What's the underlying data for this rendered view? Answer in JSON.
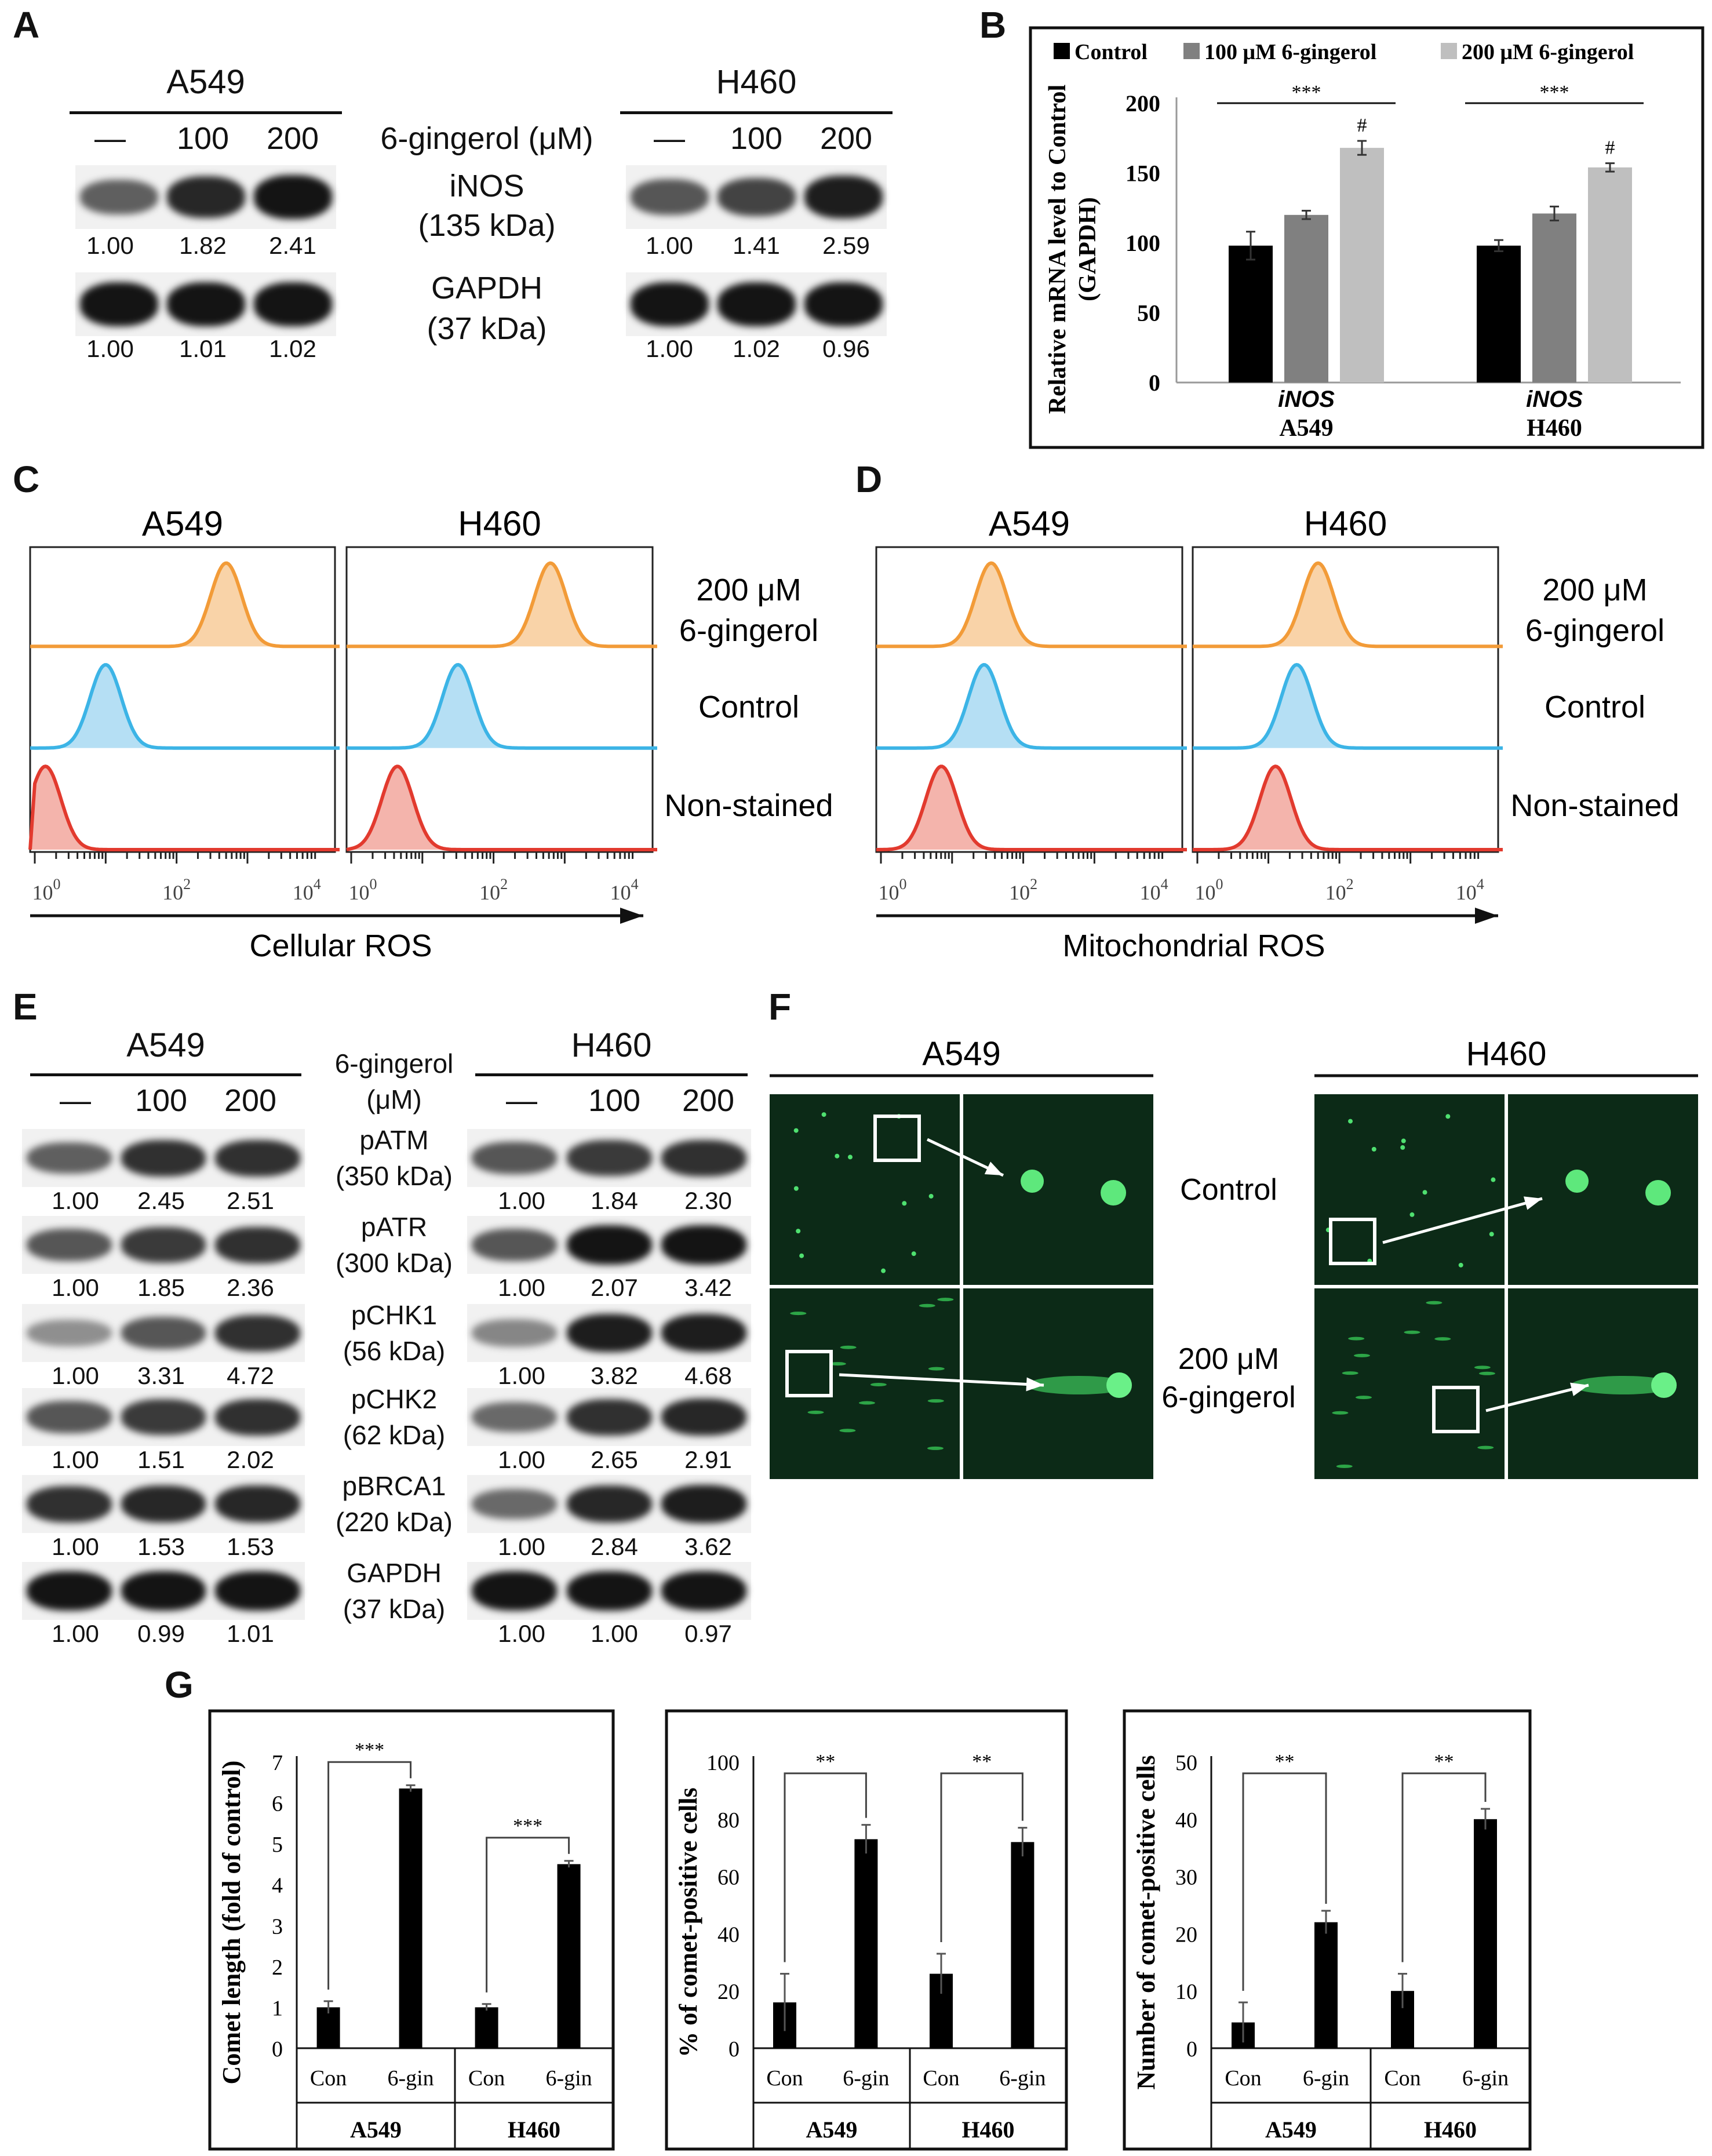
{
  "panels": {
    "A": {
      "letter": "A",
      "groups": [
        {
          "cell": "A549",
          "doses": [
            "—",
            "100",
            "200"
          ],
          "iNOS": [
            "1.00",
            "1.82",
            "2.41"
          ],
          "GAPDH": [
            "1.00",
            "1.01",
            "1.02"
          ]
        },
        {
          "cell": "H460",
          "doses": [
            "—",
            "100",
            "200"
          ],
          "iNOS": [
            "1.00",
            "1.41",
            "2.59"
          ],
          "GAPDH": [
            "1.00",
            "1.02",
            "0.96"
          ]
        }
      ],
      "treatment_label": "6-gingerol (μM)",
      "protein1": [
        "iNOS",
        "(135 kDa)"
      ],
      "protein2": [
        "GAPDH",
        "(37 kDa)"
      ]
    },
    "B": {
      "letter": "B",
      "chart_data": {
        "type": "bar",
        "legend": [
          "Control",
          "100 μM 6-gingerol",
          "200 μM 6-gingerol"
        ],
        "legend_placement": "top",
        "categories": [
          [
            "iNOS",
            "A549"
          ],
          [
            "iNOS",
            "H460"
          ]
        ],
        "series": [
          {
            "name": "Control",
            "color": "#000000",
            "values": [
              98,
              98
            ],
            "errors": [
              10,
              4
            ]
          },
          {
            "name": "100 μM 6-gingerol",
            "color": "#808080",
            "values": [
              120,
              121
            ],
            "errors": [
              3,
              5
            ]
          },
          {
            "name": "200 μM 6-gingerol",
            "color": "#bfbfbf",
            "values": [
              168,
              154
            ],
            "errors": [
              5,
              3
            ]
          }
        ],
        "ylabel": [
          "Relative mRNA level to Control",
          "(GAPDH)"
        ],
        "yticks": [
          0,
          50,
          100,
          150,
          200
        ],
        "ylim": [
          0,
          200
        ],
        "annotations": {
          "bracket": "***",
          "hash": "#"
        }
      }
    },
    "C": {
      "letter": "C",
      "chart_data": {
        "type": "area",
        "titles": [
          "A549",
          "H460"
        ],
        "xlabel": "Cellular ROS",
        "xscale": "log",
        "xticks": [
          "10",
          "10",
          "10"
        ],
        "xtick_exp": [
          "0",
          "2",
          "4"
        ],
        "series_labels": [
          [
            "200 μM",
            "6-gingerol"
          ],
          [
            "Control"
          ],
          [
            "Non-stained"
          ]
        ],
        "peaks_log10": [
          [
            2.7,
            1.0,
            0.15
          ],
          [
            2.8,
            1.5,
            0.65
          ]
        ],
        "colors": [
          "#f29b38",
          "#3cb4e6",
          "#e23a2e"
        ],
        "fills": [
          "#f9d3a8",
          "#b5dff4",
          "#f4b4ac"
        ]
      }
    },
    "D": {
      "letter": "D",
      "chart_data": {
        "type": "area",
        "titles": [
          "A549",
          "H460"
        ],
        "xlabel": "Mitochondrial ROS",
        "xscale": "log",
        "xticks": [
          "10",
          "10",
          "10"
        ],
        "xtick_exp": [
          "0",
          "2",
          "4"
        ],
        "series_labels": [
          [
            "200 μM",
            "6-gingerol"
          ],
          [
            "Control"
          ],
          [
            "Non-stained"
          ]
        ],
        "peaks_log10": [
          [
            1.55,
            1.45,
            0.85
          ],
          [
            1.7,
            1.4,
            1.1
          ]
        ],
        "colors": [
          "#f29b38",
          "#3cb4e6",
          "#e23a2e"
        ],
        "fills": [
          "#f9d3a8",
          "#b5dff4",
          "#f4b4ac"
        ]
      }
    },
    "E": {
      "letter": "E",
      "treatment_label": [
        "6-gingerol",
        "(μM)"
      ],
      "groups": [
        {
          "cell": "A549",
          "doses": [
            "—",
            "100",
            "200"
          ]
        },
        {
          "cell": "H460",
          "doses": [
            "—",
            "100",
            "200"
          ]
        }
      ],
      "rows": [
        {
          "protein": "pATM",
          "kda": "(350 kDa)",
          "A549": [
            "1.00",
            "2.45",
            "2.51"
          ],
          "H460": [
            "1.00",
            "1.84",
            "2.30"
          ]
        },
        {
          "protein": "pATR",
          "kda": "(300 kDa)",
          "A549": [
            "1.00",
            "1.85",
            "2.36"
          ],
          "H460": [
            "1.00",
            "2.07",
            "3.42"
          ]
        },
        {
          "protein": "pCHK1",
          "kda": "(56 kDa)",
          "A549": [
            "1.00",
            "3.31",
            "4.72"
          ],
          "H460": [
            "1.00",
            "3.82",
            "4.68"
          ]
        },
        {
          "protein": "pCHK2",
          "kda": "(62 kDa)",
          "A549": [
            "1.00",
            "1.51",
            "2.02"
          ],
          "H460": [
            "1.00",
            "2.65",
            "2.91"
          ]
        },
        {
          "protein": "pBRCA1",
          "kda": "(220 kDa)",
          "A549": [
            "1.00",
            "1.53",
            "1.53"
          ],
          "H460": [
            "1.00",
            "2.84",
            "3.62"
          ]
        },
        {
          "protein": "GAPDH",
          "kda": "(37 kDa)",
          "A549": [
            "1.00",
            "0.99",
            "1.01"
          ],
          "H460": [
            "1.00",
            "1.00",
            "0.97"
          ]
        }
      ]
    },
    "F": {
      "letter": "F",
      "cells": [
        "A549",
        "H460"
      ],
      "conditions": [
        "Control",
        [
          "200 μM",
          "6-gingerol"
        ]
      ]
    },
    "G": {
      "letter": "G",
      "chart_data": [
        {
          "type": "bar",
          "ylabel": "Comet length (fold of control)",
          "yticks": [
            0,
            1,
            2,
            3,
            4,
            5,
            6,
            7
          ],
          "ylim": [
            0,
            7
          ],
          "categories": [
            "Con",
            "6-gin",
            "Con",
            "6-gin"
          ],
          "groups": [
            "A549",
            "H460"
          ],
          "values": [
            1.0,
            6.35,
            1.0,
            4.5
          ],
          "errors": [
            0.15,
            0.08,
            0.08,
            0.08
          ],
          "sig": [
            "***",
            "***"
          ]
        },
        {
          "type": "bar",
          "ylabel": "% of comet-positive cells",
          "yticks": [
            0,
            20,
            40,
            60,
            80,
            100
          ],
          "ylim": [
            0,
            100
          ],
          "categories": [
            "Con",
            "6-gin",
            "Con",
            "6-gin"
          ],
          "groups": [
            "A549",
            "H460"
          ],
          "values": [
            16,
            73,
            26,
            72
          ],
          "errors": [
            10,
            5,
            7,
            5
          ],
          "sig": [
            "**",
            "**"
          ]
        },
        {
          "type": "bar",
          "ylabel": "Number of comet-positive cells",
          "yticks": [
            0,
            10,
            20,
            30,
            40,
            50
          ],
          "ylim": [
            0,
            50
          ],
          "categories": [
            "Con",
            "6-gin",
            "Con",
            "6-gin"
          ],
          "groups": [
            "A549",
            "H460"
          ],
          "values": [
            4.5,
            22,
            10,
            40
          ],
          "errors": [
            3.5,
            2,
            3,
            1.8
          ],
          "sig": [
            "**",
            "**"
          ]
        }
      ]
    }
  }
}
